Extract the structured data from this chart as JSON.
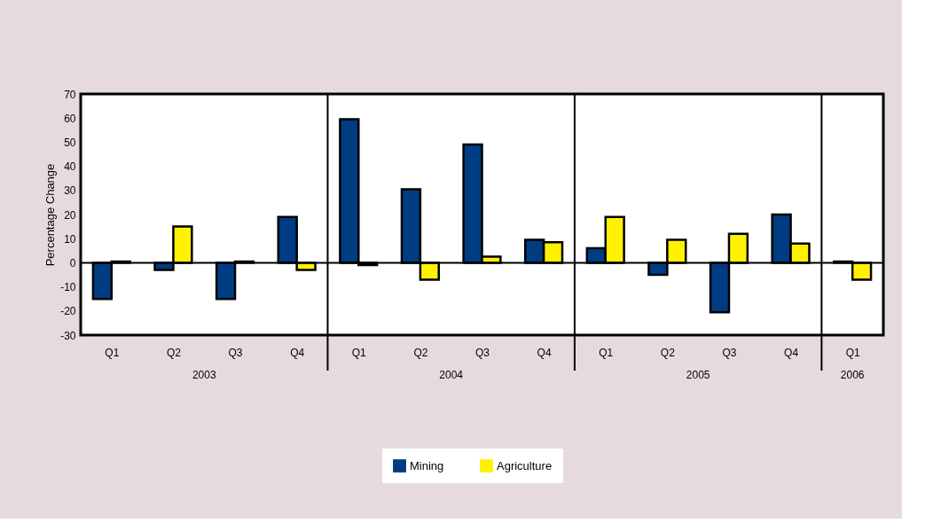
{
  "chart_data": {
    "type": "bar",
    "ylabel": "Percentage Change",
    "categories": [
      "Q1",
      "Q2",
      "Q3",
      "Q4",
      "Q1",
      "Q2",
      "Q3",
      "Q4",
      "Q1",
      "Q2",
      "Q3",
      "Q4",
      "Q1"
    ],
    "series": [
      {
        "name": "Mining",
        "color": "#003c82",
        "values": [
          -15,
          -3,
          -15,
          19,
          59.5,
          30.5,
          49,
          9.5,
          6,
          -5,
          -20.5,
          20,
          0.5
        ]
      },
      {
        "name": "Agriculture",
        "color": "#fff200",
        "values": [
          0.5,
          15,
          0.5,
          -3,
          -1,
          -7,
          2.5,
          8.5,
          19,
          9.5,
          12,
          8,
          -7
        ]
      }
    ],
    "annotations": [
      "2003",
      "2004",
      "2005",
      "2006"
    ],
    "ylim": [
      -30,
      70
    ],
    "yticks": [
      -30,
      -20,
      -10,
      0,
      10,
      20,
      30,
      40,
      50,
      60,
      70
    ],
    "ref_lines": [
      {
        "axis": "y",
        "value": 0
      }
    ],
    "grid": false,
    "legend": "bottom"
  }
}
